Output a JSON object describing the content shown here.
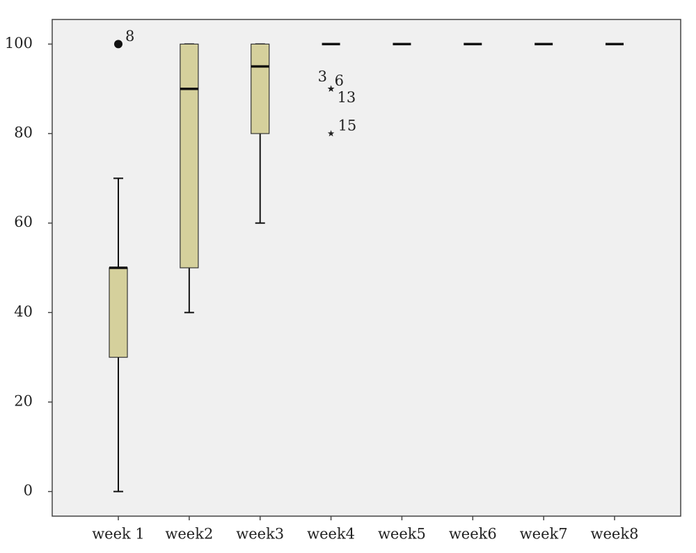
{
  "chart_data": {
    "type": "box",
    "categories": [
      "week 1",
      "week2",
      "week3",
      "week4",
      "week5",
      "week6",
      "week7",
      "week8"
    ],
    "boxes": [
      {
        "min": 0,
        "q1": 30,
        "median": 50,
        "q3": 50,
        "max": 70,
        "outliers": [
          {
            "value": 100,
            "label": "8",
            "marker": "circle"
          }
        ]
      },
      {
        "min": 40,
        "q1": 50,
        "median": 90,
        "q3": 100,
        "max": 100,
        "outliers": []
      },
      {
        "min": 60,
        "q1": 80,
        "median": 95,
        "q3": 100,
        "max": 100,
        "outliers": []
      },
      {
        "min": 100,
        "q1": 100,
        "median": 100,
        "q3": 100,
        "max": 100,
        "outliers": [
          {
            "value": 90,
            "label": "3",
            "marker": "star"
          },
          {
            "value": 90,
            "label": "6",
            "marker": "star"
          },
          {
            "value": 90,
            "label": "13",
            "marker": "star"
          },
          {
            "value": 80,
            "label": "15",
            "marker": "star"
          }
        ]
      },
      {
        "min": 100,
        "q1": 100,
        "median": 100,
        "q3": 100,
        "max": 100,
        "outliers": []
      },
      {
        "min": 100,
        "q1": 100,
        "median": 100,
        "q3": 100,
        "max": 100,
        "outliers": []
      },
      {
        "min": 100,
        "q1": 100,
        "median": 100,
        "q3": 100,
        "max": 100,
        "outliers": []
      },
      {
        "min": 100,
        "q1": 100,
        "median": 100,
        "q3": 100,
        "max": 100,
        "outliers": []
      }
    ],
    "color": "#d5d09c",
    "ylim": [
      -5.5,
      105.5
    ],
    "yticks": [
      0,
      20,
      40,
      60,
      80,
      100
    ]
  }
}
